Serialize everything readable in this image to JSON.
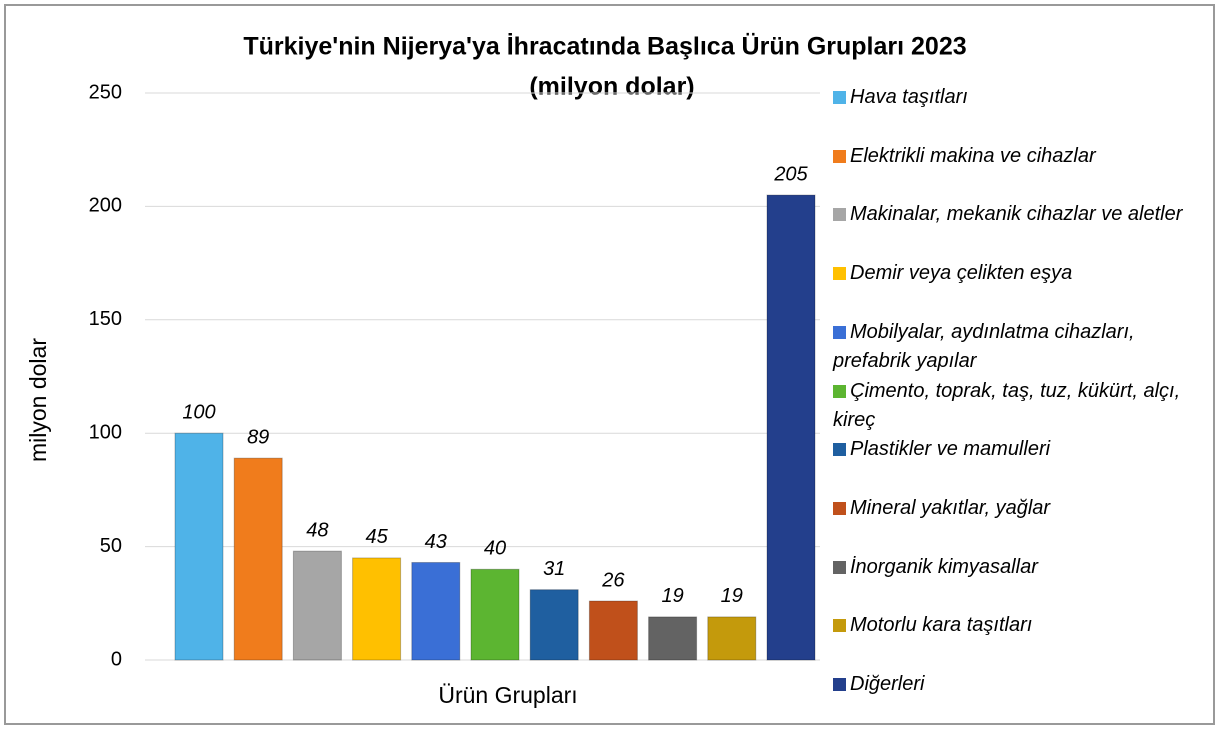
{
  "chart_data": {
    "type": "bar",
    "title": "Türkiye'nin Nijerya'ya İhracatında Başlıca Ürün Grupları 2023",
    "subtitle": "(milyon dolar)",
    "x_label": "Ürün Grupları",
    "y_label": "milyon dolar",
    "categories": [
      "Hava taşıtları",
      "Elektrikli makina ve cihazlar",
      "Makinalar, mekanik cihazlar ve aletler",
      "Demir veya çelikten eşya",
      "Mobilyalar, aydınlatma cihazları, prefabrik yapılar",
      "Çimento, toprak, taş, tuz, kükürt, alçı, kireç",
      "Plastikler ve mamulleri",
      "Mineral yakıtlar, yağlar",
      "İnorganik kimyasallar",
      "Motorlu kara taşıtları",
      "Diğerleri"
    ],
    "values": [
      100,
      89,
      48,
      45,
      43,
      40,
      31,
      26,
      19,
      19,
      205
    ],
    "colors": [
      "#4fb3e8",
      "#f07c1c",
      "#a6a6a6",
      "#ffc000",
      "#3a6fd6",
      "#5cb531",
      "#1f5fa0",
      "#c0501b",
      "#636363",
      "#c49a0c",
      "#233f8c"
    ],
    "ylim": [
      0,
      250
    ],
    "yticks": [
      0,
      50,
      100,
      150,
      200,
      250
    ],
    "grid": true,
    "legend": "right"
  }
}
